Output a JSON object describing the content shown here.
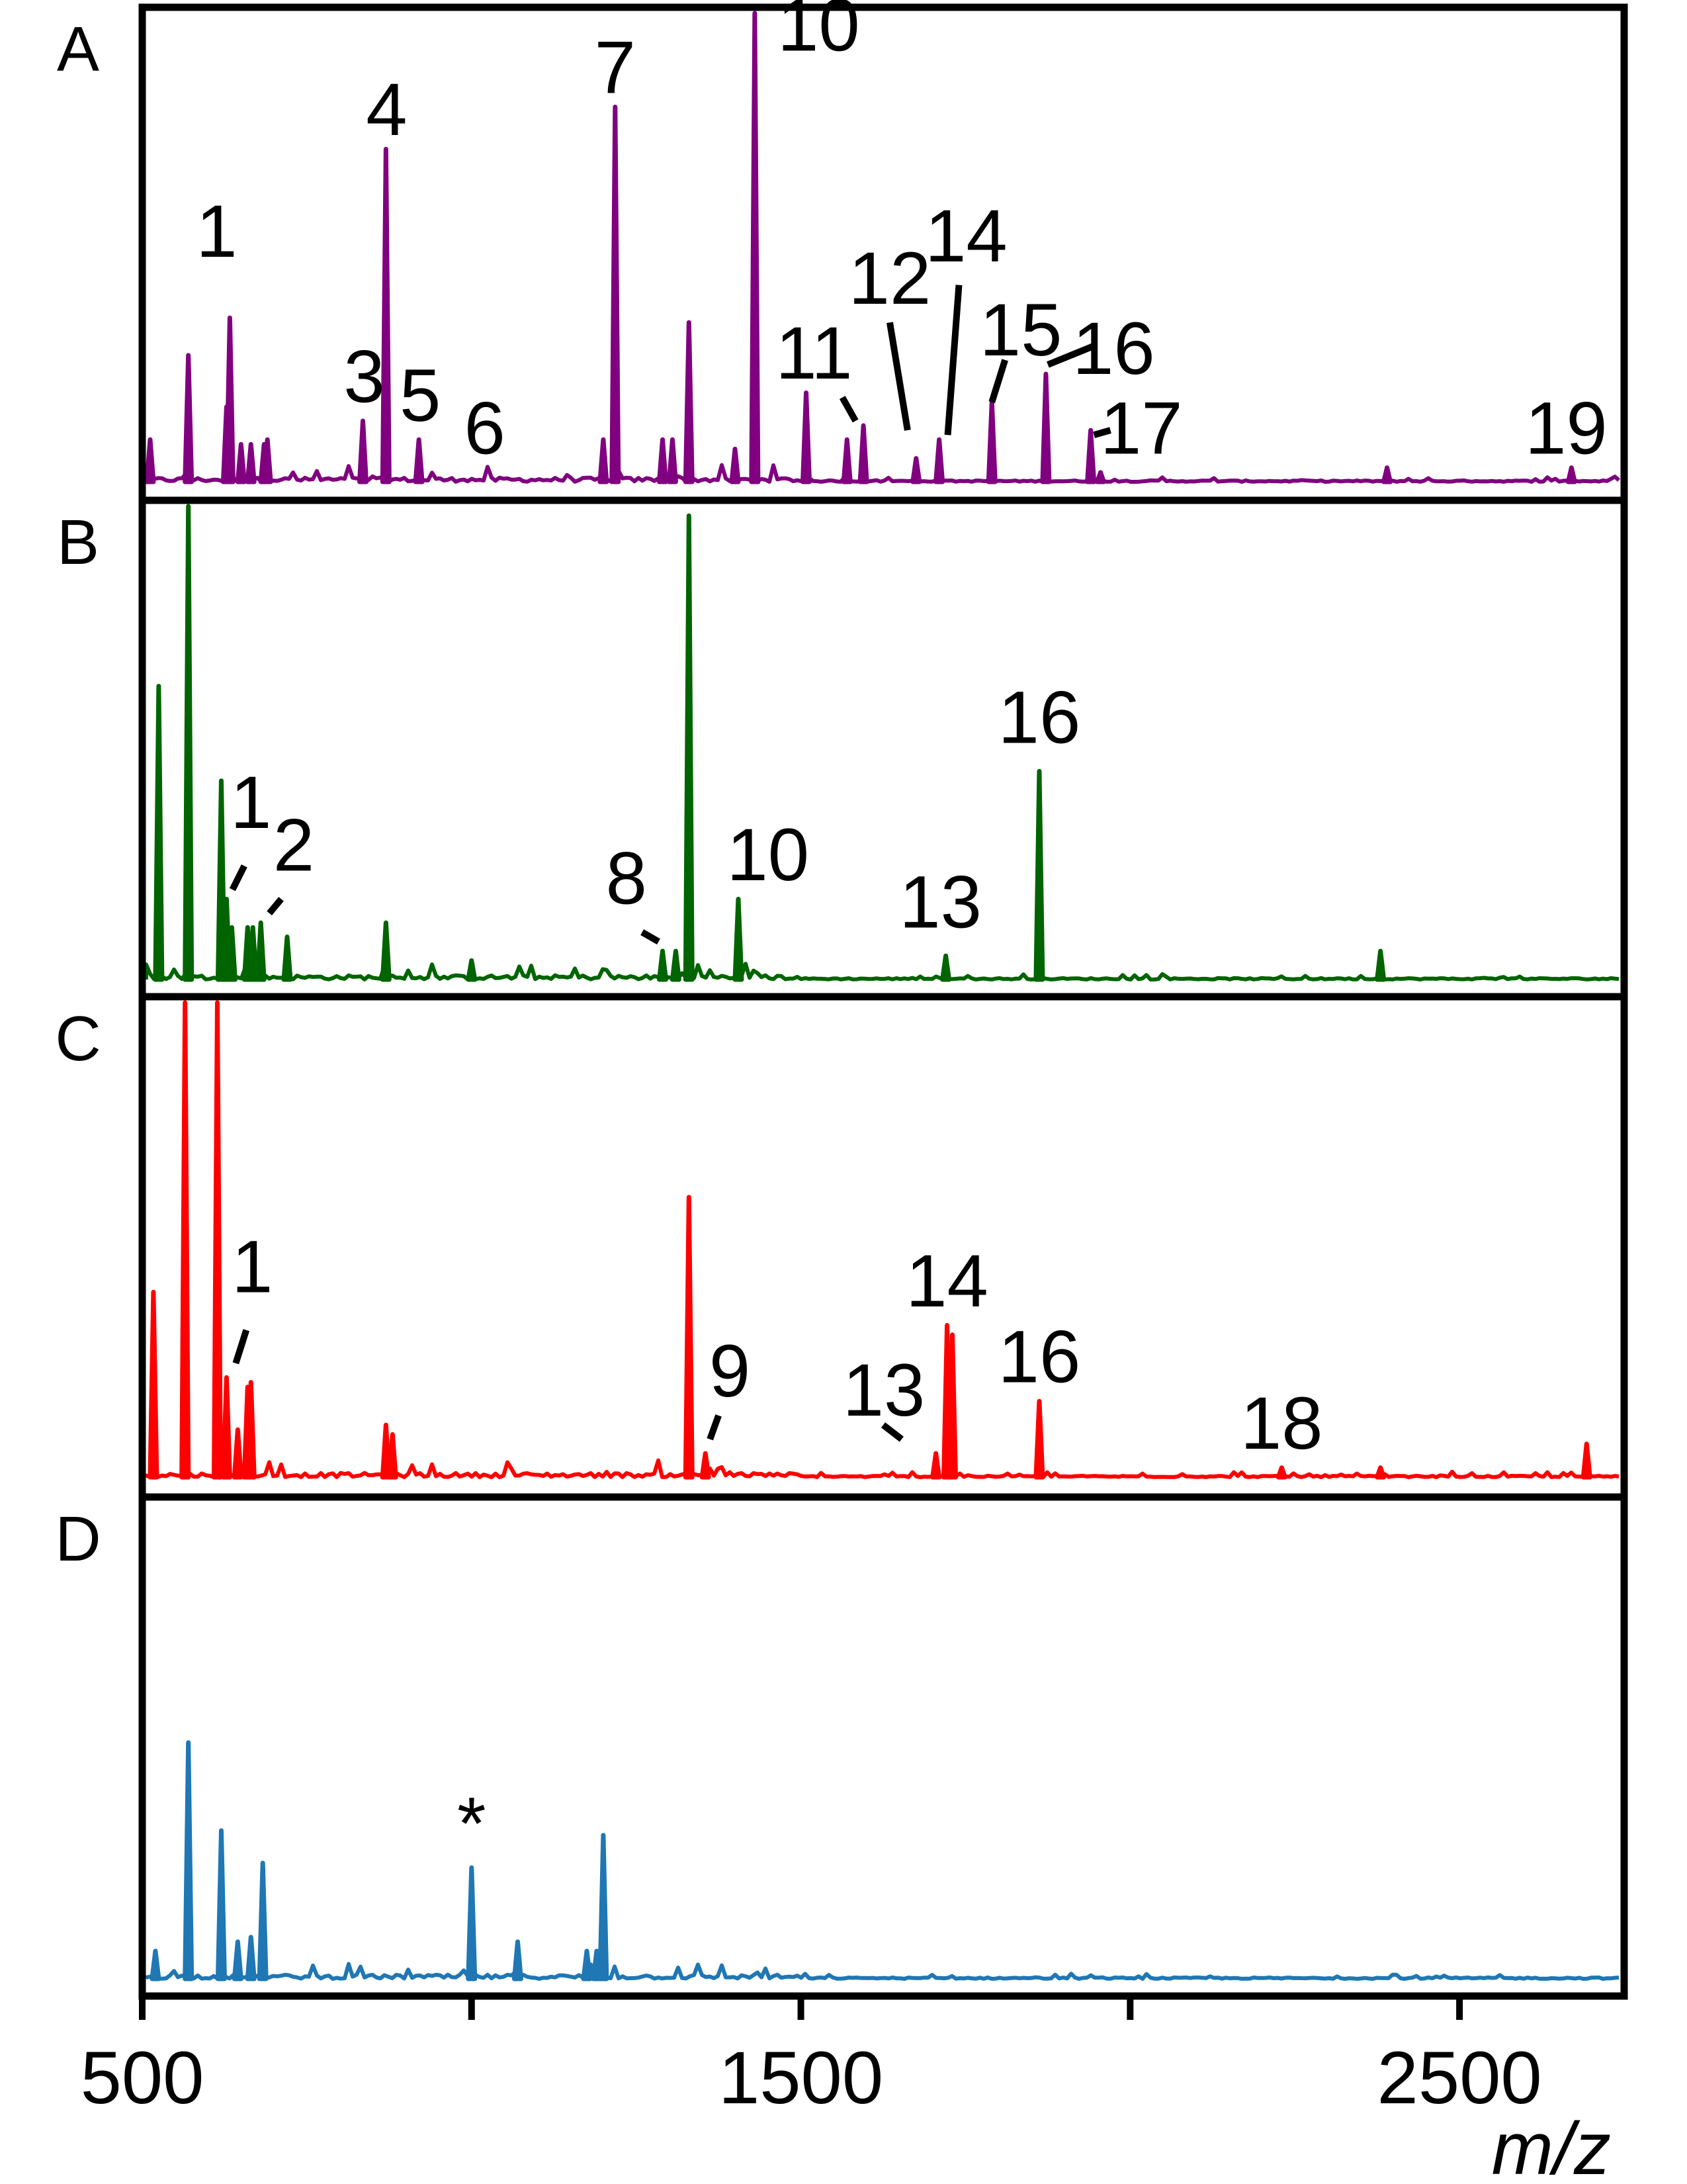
{
  "chart_data": {
    "type": "line",
    "title": "",
    "xlabel": "m/z",
    "xlim": [
      500,
      2750
    ],
    "xticks": [
      500,
      1000,
      1500,
      2000,
      2500
    ],
    "xtick_labels": [
      "500",
      "",
      "1500",
      "",
      "2500"
    ],
    "ylabel": "",
    "grid": false,
    "panels": [
      {
        "letter": "A",
        "color": "#800080",
        "peaks": [
          [
            512,
            0.09
          ],
          [
            570,
            0.27
          ],
          [
            628,
            0.16
          ],
          [
            633,
            0.35
          ],
          [
            650,
            0.08
          ],
          [
            665,
            0.08
          ],
          [
            685,
            0.08
          ],
          [
            690,
            0.09
          ],
          [
            835,
            0.13
          ],
          [
            870,
            0.71
          ],
          [
            920,
            0.09
          ],
          [
            1200,
            0.09
          ],
          [
            1218,
            0.8
          ],
          [
            1290,
            0.09
          ],
          [
            1305,
            0.09
          ],
          [
            1330,
            0.34
          ],
          [
            1400,
            0.07
          ],
          [
            1430,
            1.0
          ],
          [
            1508,
            0.19
          ],
          [
            1570,
            0.09
          ],
          [
            1595,
            0.12
          ],
          [
            1675,
            0.05
          ],
          [
            1710,
            0.09
          ],
          [
            1790,
            0.17
          ],
          [
            1872,
            0.23
          ],
          [
            1940,
            0.11
          ],
          [
            1955,
            0.02
          ],
          [
            2390,
            0.03
          ],
          [
            2670,
            0.03
          ]
        ],
        "labels": [
          {
            "text": "1",
            "x": 613,
            "y": 0.48
          },
          {
            "text": "3",
            "x": 837,
            "y": 0.17
          },
          {
            "text": "4",
            "x": 871,
            "y": 0.74
          },
          {
            "text": "5",
            "x": 922,
            "y": 0.13
          },
          {
            "text": "6",
            "x": 1020,
            "y": 0.06
          },
          {
            "text": "7",
            "x": 1218,
            "y": 0.83
          },
          {
            "text": "10",
            "x": 1527,
            "y": 0.92
          },
          {
            "text": "11",
            "x": 1520,
            "y": 0.22
          },
          {
            "text": "12",
            "x": 1635,
            "y": 0.38
          },
          {
            "text": "14",
            "x": 1751,
            "y": 0.47
          },
          {
            "text": "15",
            "x": 1834,
            "y": 0.27
          },
          {
            "text": "16",
            "x": 1975,
            "y": 0.23
          },
          {
            "text": "17",
            "x": 2017,
            "y": 0.06
          },
          {
            "text": "19",
            "x": 2662,
            "y": 0.06
          }
        ],
        "leaders": [
          [
            1563,
            0.18,
            1583,
            0.13
          ],
          [
            1635,
            0.34,
            1662,
            0.11
          ],
          [
            1740,
            0.42,
            1723,
            0.1
          ],
          [
            1810,
            0.26,
            1790,
            0.17
          ],
          [
            1875,
            0.25,
            1945,
            0.29
          ],
          [
            1945,
            0.1,
            1970,
            0.11
          ]
        ]
      },
      {
        "letter": "B",
        "color": "#006400",
        "peaks": [
          [
            525,
            0.62
          ],
          [
            570,
            1.0
          ],
          [
            620,
            0.42
          ],
          [
            628,
            0.17
          ],
          [
            636,
            0.11
          ],
          [
            660,
            0.11
          ],
          [
            668,
            0.11
          ],
          [
            680,
            0.12
          ],
          [
            720,
            0.09
          ],
          [
            870,
            0.12
          ],
          [
            1000,
            0.04
          ],
          [
            1290,
            0.06
          ],
          [
            1310,
            0.06
          ],
          [
            1330,
            0.98
          ],
          [
            1405,
            0.17
          ],
          [
            1720,
            0.05
          ],
          [
            1862,
            0.44
          ],
          [
            2380,
            0.06
          ]
        ],
        "labels": [
          {
            "text": "1",
            "x": 665,
            "y": 0.32
          },
          {
            "text": "2",
            "x": 730,
            "y": 0.23
          },
          {
            "text": "8",
            "x": 1235,
            "y": 0.16
          },
          {
            "text": "10",
            "x": 1450,
            "y": 0.21
          },
          {
            "text": "13",
            "x": 1712,
            "y": 0.11
          },
          {
            "text": "16",
            "x": 1862,
            "y": 0.5
          }
        ],
        "leaders": [
          [
            655,
            0.24,
            637,
            0.19
          ],
          [
            711,
            0.17,
            693,
            0.14
          ],
          [
            1259,
            0.1,
            1284,
            0.08
          ]
        ]
      },
      {
        "letter": "C",
        "color": "#ff0000",
        "peaks": [
          [
            517,
            0.39
          ],
          [
            565,
            1.0
          ],
          [
            614,
            1.0
          ],
          [
            628,
            0.21
          ],
          [
            645,
            0.1
          ],
          [
            660,
            0.19
          ],
          [
            665,
            0.2
          ],
          [
            870,
            0.11
          ],
          [
            880,
            0.09
          ],
          [
            1330,
            0.59
          ],
          [
            1355,
            0.05
          ],
          [
            1705,
            0.05
          ],
          [
            1722,
            0.32
          ],
          [
            1730,
            0.3
          ],
          [
            1862,
            0.16
          ],
          [
            2230,
            0.02
          ],
          [
            2380,
            0.02
          ],
          [
            2693,
            0.07
          ]
        ],
        "labels": [
          {
            "text": "1",
            "x": 667,
            "y": 0.39
          },
          {
            "text": "9",
            "x": 1392,
            "y": 0.17
          },
          {
            "text": "13",
            "x": 1626,
            "y": 0.13
          },
          {
            "text": "14",
            "x": 1722,
            "y": 0.36
          },
          {
            "text": "16",
            "x": 1862,
            "y": 0.2
          },
          {
            "text": "18",
            "x": 2230,
            "y": 0.06
          }
        ],
        "leaders": [
          [
            658,
            0.31,
            642,
            0.24
          ],
          [
            1375,
            0.13,
            1362,
            0.08
          ],
          [
            1625,
            0.11,
            1653,
            0.08
          ]
        ]
      },
      {
        "letter": "D",
        "color": "#1f77b4",
        "peaks": [
          [
            520,
            0.06
          ],
          [
            570,
            0.51
          ],
          [
            620,
            0.32
          ],
          [
            645,
            0.08
          ],
          [
            665,
            0.09
          ],
          [
            683,
            0.25
          ],
          [
            1000,
            0.24
          ],
          [
            1070,
            0.08
          ],
          [
            1175,
            0.06
          ],
          [
            1190,
            0.06
          ],
          [
            1200,
            0.31
          ]
        ],
        "labels": [
          {
            "text": "*",
            "x": 1000,
            "y": 0.28
          }
        ],
        "leaders": []
      }
    ]
  }
}
